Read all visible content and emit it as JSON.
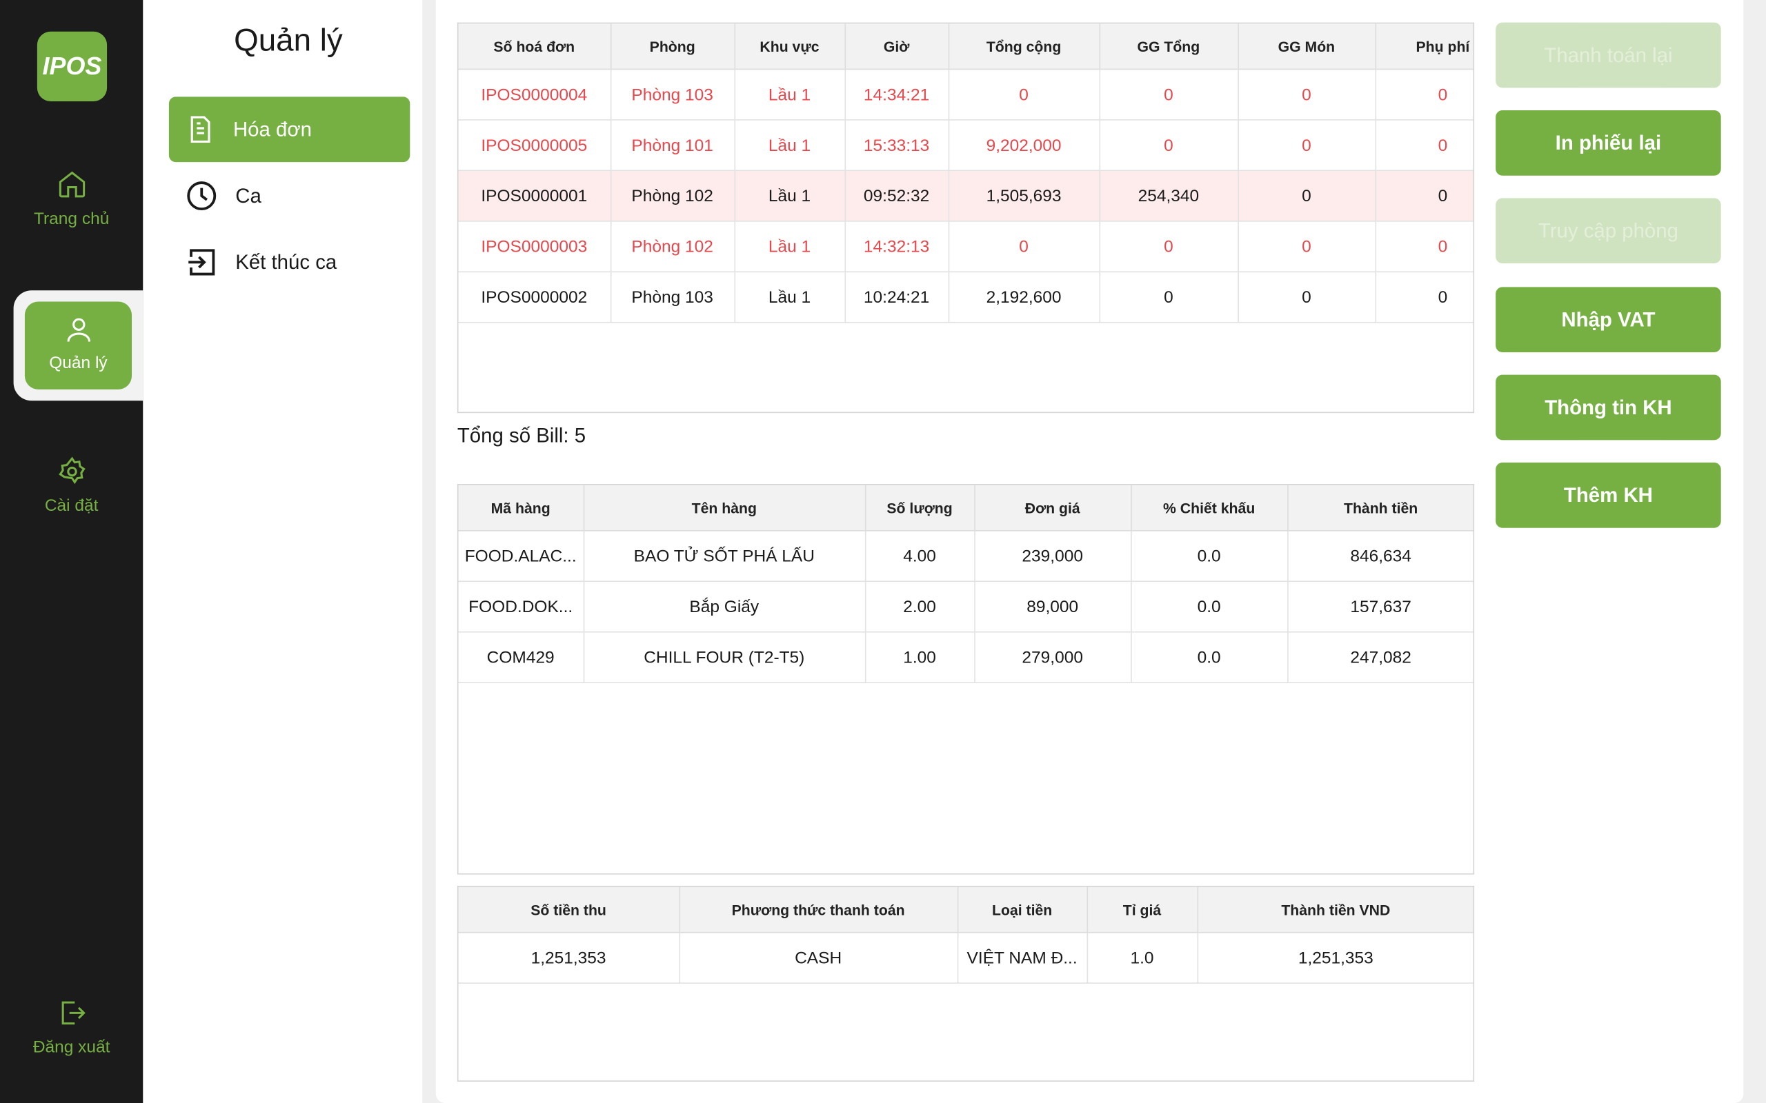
{
  "sidebar": {
    "logo": "IPOS",
    "nav": [
      {
        "label": "Trang chủ",
        "active": false
      },
      {
        "label": "Quản lý",
        "active": true
      },
      {
        "label": "Cài đặt",
        "active": false
      },
      {
        "label": "Đăng xuất",
        "active": false
      }
    ]
  },
  "menu": {
    "title": "Quản lý",
    "items": [
      {
        "label": "Hóa đơn",
        "active": true
      },
      {
        "label": "Ca",
        "active": false
      },
      {
        "label": "Kết thúc ca",
        "active": false
      }
    ]
  },
  "invoices": {
    "headers": [
      "Số hoá đơn",
      "Phòng",
      "Khu vực",
      "Giờ",
      "Tổng cộng",
      "GG Tổng",
      "GG Món",
      "Phụ phí"
    ],
    "rows": [
      {
        "color": "#e5484d",
        "selected": false,
        "cells": [
          "IPOS0000004",
          "Phòng 103",
          "Lầu 1",
          "14:34:21",
          "0",
          "0",
          "0",
          "0"
        ]
      },
      {
        "color": "#e5484d",
        "selected": false,
        "cells": [
          "IPOS0000005",
          "Phòng 101",
          "Lầu 1",
          "15:33:13",
          "9,202,000",
          "0",
          "0",
          "0"
        ]
      },
      {
        "color": "#1a1a1a",
        "selected": true,
        "cells": [
          "IPOS0000001",
          "Phòng 102",
          "Lầu 1",
          "09:52:32",
          "1,505,693",
          "254,340",
          "0",
          "0"
        ]
      },
      {
        "color": "#e5484d",
        "selected": false,
        "cells": [
          "IPOS0000003",
          "Phòng 102",
          "Lầu 1",
          "14:32:13",
          "0",
          "0",
          "0",
          "0"
        ]
      },
      {
        "color": "#1a1a1a",
        "selected": false,
        "cells": [
          "IPOS0000002",
          "Phòng 103",
          "Lầu 1",
          "10:24:21",
          "2,192,600",
          "0",
          "0",
          "0"
        ]
      }
    ]
  },
  "total_bills": "Tổng số Bill: 5",
  "items": {
    "headers": [
      "Mã hàng",
      "Tên hàng",
      "Số lượng",
      "Đơn giá",
      "% Chiết khấu",
      "Thành tiền"
    ],
    "rows": [
      [
        "FOOD.ALAC...",
        "BAO TỬ SỐT PHÁ LẤU",
        "4.00",
        "239,000",
        "0.0",
        "846,634"
      ],
      [
        "FOOD.DOK...",
        "Bắp  Giấy",
        "2.00",
        "89,000",
        "0.0",
        "157,637"
      ],
      [
        "COM429",
        "CHILL FOUR (T2-T5)",
        "1.00",
        "279,000",
        "0.0",
        "247,082"
      ]
    ]
  },
  "payments": {
    "headers": [
      "Số tiền thu",
      "Phương thức thanh toán",
      "Loại tiền",
      "Tỉ giá",
      "Thành tiền VND"
    ],
    "rows": [
      [
        "1,251,353",
        "CASH",
        "VIỆT NAM Đ...",
        "1.0",
        "1,251,353"
      ]
    ]
  },
  "actions": [
    {
      "label": "Thanh toán lại",
      "enabled": false
    },
    {
      "label": "In phiếu lại",
      "enabled": true
    },
    {
      "label": "Truy cập phòng",
      "enabled": false
    },
    {
      "label": "Nhập VAT",
      "enabled": true
    },
    {
      "label": "Thông tin KH",
      "enabled": true
    },
    {
      "label": "Thêm KH",
      "enabled": true
    }
  ]
}
